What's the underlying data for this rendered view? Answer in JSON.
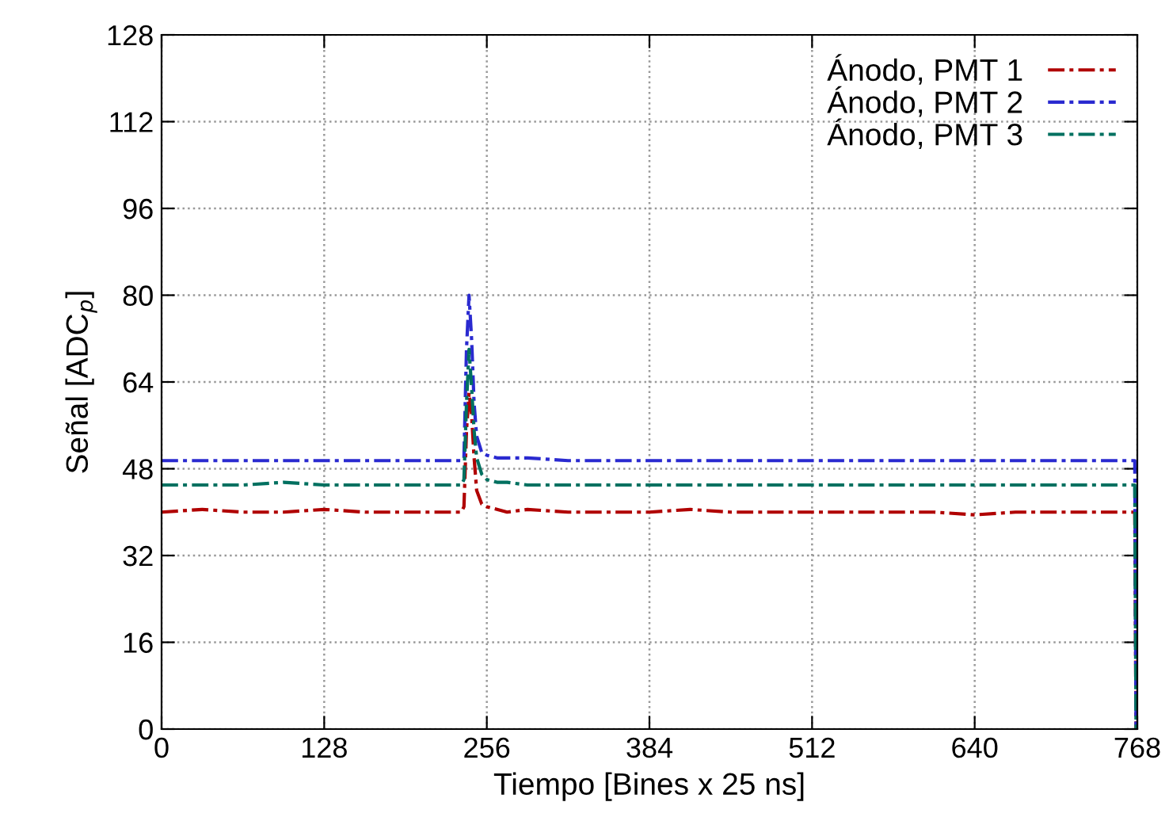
{
  "chart_data": {
    "type": "line",
    "xlabel": "Tiempo [Bines x 25 ns]",
    "ylabel": "Señal [ADC$_{p}$]",
    "x": [
      0,
      32,
      64,
      96,
      128,
      160,
      192,
      224,
      236,
      238,
      240,
      242,
      244,
      246,
      248,
      252,
      256,
      264,
      272,
      288,
      320,
      352,
      384,
      416,
      448,
      480,
      512,
      544,
      576,
      608,
      640,
      672,
      704,
      736,
      760,
      766,
      767
    ],
    "series": [
      {
        "name": "Ánodo, PMT 1",
        "color": "#b00000",
        "values": [
          40,
          40.5,
          40,
          40,
          40.5,
          40,
          40,
          40,
          40,
          41,
          55,
          62,
          58,
          50,
          44,
          41.5,
          41,
          40.5,
          40,
          40.5,
          40,
          40,
          40,
          40.5,
          40,
          40,
          40,
          40,
          40,
          40,
          39.5,
          40,
          40,
          40,
          40,
          40,
          0
        ]
      },
      {
        "name": "Ánodo, PMT 2",
        "color": "#2a2ad0",
        "values": [
          49.5,
          49.5,
          49.5,
          49.5,
          49.5,
          49.5,
          49.5,
          49.5,
          49.5,
          50,
          70,
          80,
          72,
          60,
          54,
          51,
          50.5,
          50,
          50,
          50,
          49.5,
          49.5,
          49.5,
          49.5,
          49.5,
          49.5,
          49.5,
          49.5,
          49.5,
          49.5,
          49.5,
          49.5,
          49.5,
          49.5,
          49.5,
          49.5,
          0
        ]
      },
      {
        "name": "Ánodo, PMT 3",
        "color": "#007060",
        "values": [
          45,
          45,
          45,
          45.5,
          45,
          45,
          45,
          45,
          45,
          46,
          60,
          70,
          63,
          55,
          50,
          47,
          46,
          45.5,
          45.5,
          45,
          45,
          45,
          45,
          45,
          45,
          45,
          45,
          45,
          45,
          45,
          45,
          45,
          45,
          45,
          45,
          45,
          0
        ]
      }
    ],
    "xlim": [
      0,
      768
    ],
    "xticks": [
      0,
      128,
      256,
      384,
      512,
      640,
      768
    ],
    "ylim": [
      0,
      128
    ],
    "yticks": [
      0,
      16,
      32,
      48,
      64,
      80,
      96,
      112,
      128
    ],
    "grid": true,
    "legend": "top right",
    "line_style": "dashed",
    "marker": "none"
  }
}
